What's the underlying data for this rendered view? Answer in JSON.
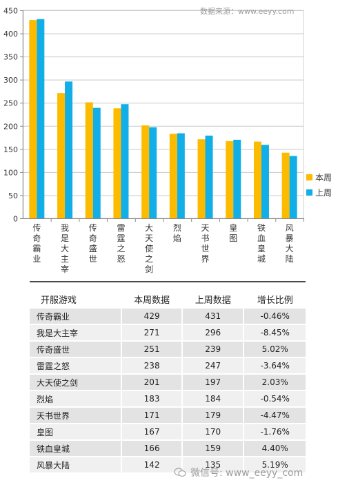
{
  "source_label": "数据来源：www.eeyy.com",
  "watermark_label": "微信号: www_eeyy_com",
  "colors": {
    "this_week": "#fdbb00",
    "last_week": "#12aee8",
    "axis": "#888888",
    "grid": "#c8c8c8"
  },
  "chart_data": {
    "type": "bar",
    "categories": [
      "传奇霸业",
      "我是大主宰",
      "传奇盛世",
      "雷霆之怒",
      "大天使之剑",
      "烈焰",
      "天书世界",
      "皇图",
      "铁血皇城",
      "风暴大陆"
    ],
    "series": [
      {
        "name": "本周",
        "values": [
          429,
          271,
          251,
          238,
          201,
          183,
          171,
          167,
          166,
          142
        ]
      },
      {
        "name": "上周",
        "values": [
          431,
          296,
          239,
          247,
          197,
          184,
          179,
          170,
          159,
          135
        ]
      }
    ],
    "ylim": [
      0,
      450
    ],
    "yticks": [
      0,
      50,
      100,
      150,
      200,
      250,
      300,
      350,
      400,
      450
    ],
    "grid": true,
    "legend_position": "right",
    "title": "",
    "xlabel": "",
    "ylabel": ""
  },
  "table": {
    "headers": [
      "开服游戏",
      "本周数据",
      "上周数据",
      "增长比例"
    ],
    "rows": [
      [
        "传奇霸业",
        "429",
        "431",
        "-0.46%"
      ],
      [
        "我是大主宰",
        "271",
        "296",
        "-8.45%"
      ],
      [
        "传奇盛世",
        "251",
        "239",
        "5.02%"
      ],
      [
        "雷霆之怒",
        "238",
        "247",
        "-3.64%"
      ],
      [
        "大天使之剑",
        "201",
        "197",
        "2.03%"
      ],
      [
        "烈焰",
        "183",
        "184",
        "-0.54%"
      ],
      [
        "天书世界",
        "171",
        "179",
        "-4.47%"
      ],
      [
        "皇图",
        "167",
        "170",
        "-1.76%"
      ],
      [
        "铁血皇城",
        "166",
        "159",
        "4.40%"
      ],
      [
        "风暴大陆",
        "142",
        "135",
        "5.19%"
      ]
    ]
  }
}
